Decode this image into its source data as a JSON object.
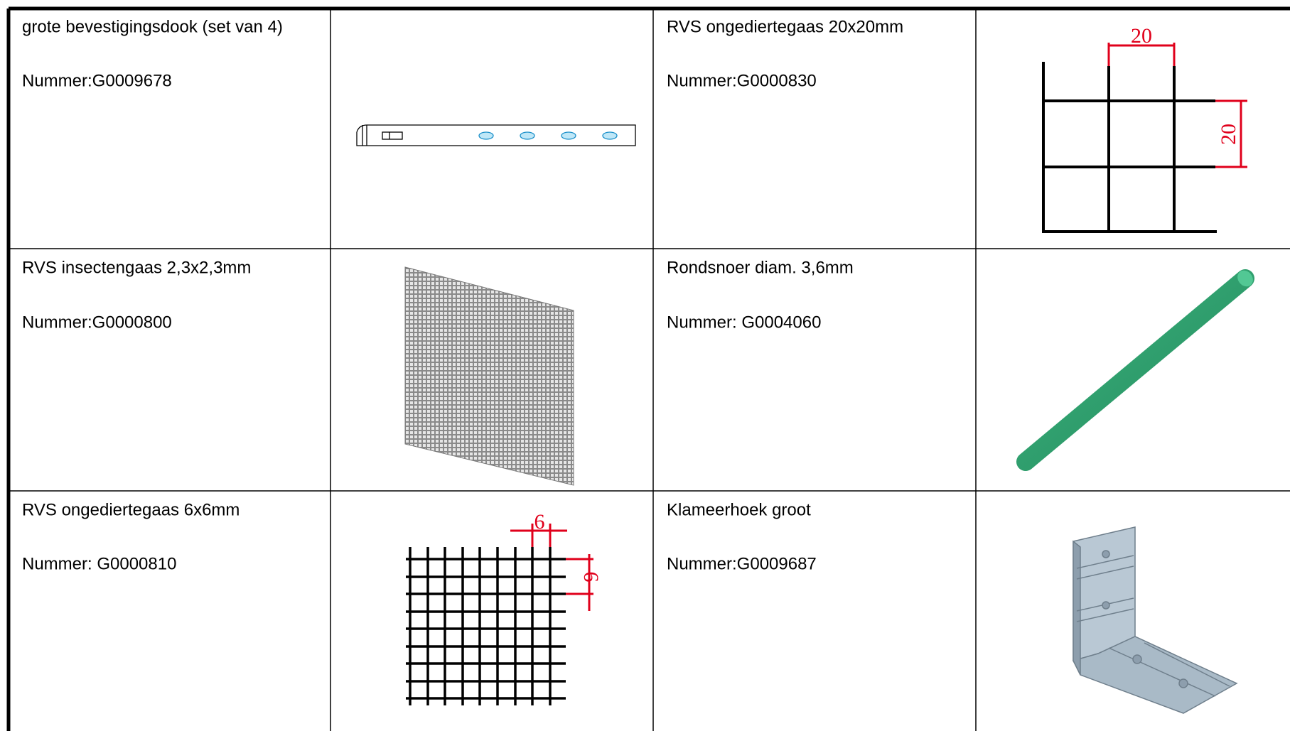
{
  "table": {
    "rows": [
      [
        {
          "name": "grote bevestigingsdook (set van 4)",
          "number": "Nummer:G0009678"
        },
        {
          "name": "RVS ongediertegaas 20x20mm",
          "number": "Nummer:G0000830",
          "dimension_labels": [
            "20",
            "20"
          ]
        }
      ],
      [
        {
          "name": "RVS insectengaas 2,3x2,3mm",
          "number": "Nummer:G0000800"
        },
        {
          "name": "Rondsnoer diam. 3,6mm",
          "number": "Nummer: G0004060"
        }
      ],
      [
        {
          "name": "RVS ongediertegaas 6x6mm",
          "number": "Nummer: G0000810",
          "dimension_labels": [
            "6",
            "6"
          ]
        },
        {
          "name": "Klameerhoek groot",
          "number": "Nummer:G0009687"
        }
      ]
    ]
  }
}
